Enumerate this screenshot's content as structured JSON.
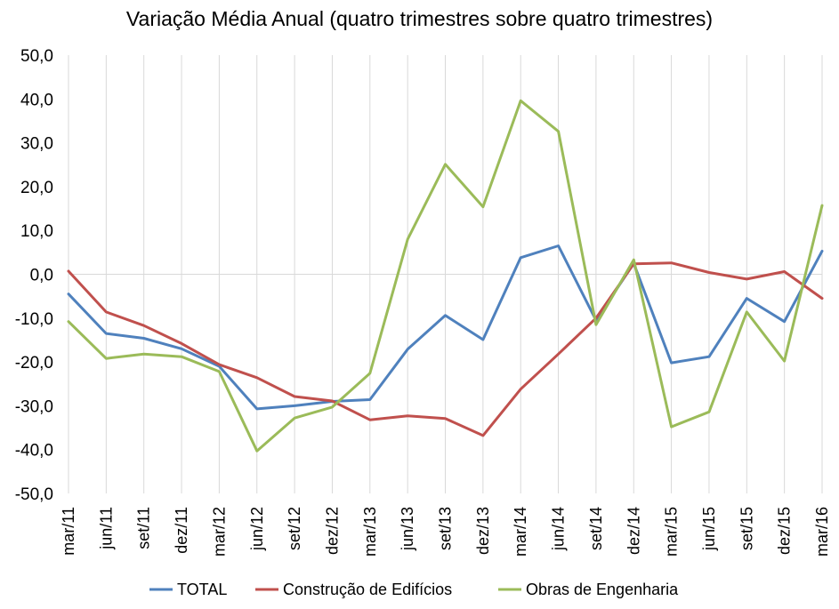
{
  "chart_data": {
    "type": "line",
    "title": "Variação Média Anual (quatro trimestres sobre quatro trimestres)",
    "xlabel": "",
    "ylabel": "",
    "ylim": [
      -50,
      50
    ],
    "y_ticks": [
      "50,0",
      "40,0",
      "30,0",
      "20,0",
      "10,0",
      "0,0",
      "-10,0",
      "-20,0",
      "-30,0",
      "-40,0",
      "-50,0"
    ],
    "categories": [
      "mar/11",
      "jun/11",
      "set/11",
      "dez/11",
      "mar/12",
      "jun/12",
      "set/12",
      "dez/12",
      "mar/13",
      "jun/13",
      "set/13",
      "dez/13",
      "mar/14",
      "jun/14",
      "set/14",
      "dez/14",
      "mar/15",
      "jun/15",
      "set/15",
      "dez/15",
      "mar/16"
    ],
    "grid": "vertical",
    "legend_position": "bottom",
    "series": [
      {
        "name": "TOTAL",
        "color": "#4f81bd",
        "values": [
          -4.5,
          -13.5,
          -14.6,
          -17.0,
          -21.0,
          -30.7,
          -30.0,
          -29.0,
          -28.6,
          -17.1,
          -9.4,
          -14.9,
          3.8,
          6.5,
          -10.5,
          2.5,
          -20.2,
          -18.8,
          -5.5,
          -10.8,
          5.3
        ]
      },
      {
        "name": "Construção de Edifícios",
        "color": "#c0504d",
        "values": [
          0.7,
          -8.6,
          -11.7,
          -15.8,
          -20.6,
          -23.6,
          -27.9,
          -28.9,
          -33.2,
          -32.3,
          -32.9,
          -36.8,
          -26.2,
          -18.2,
          -10.0,
          2.4,
          2.6,
          0.4,
          -1.1,
          0.6,
          -5.5
        ]
      },
      {
        "name": "Obras de Engenharia",
        "color": "#9bbb59",
        "values": [
          -10.8,
          -19.2,
          -18.2,
          -18.8,
          -22.2,
          -40.3,
          -32.8,
          -30.3,
          -22.6,
          8.0,
          25.1,
          15.4,
          39.6,
          32.6,
          -11.5,
          3.3,
          -34.8,
          -31.4,
          -8.6,
          -19.8,
          15.7
        ]
      }
    ]
  }
}
